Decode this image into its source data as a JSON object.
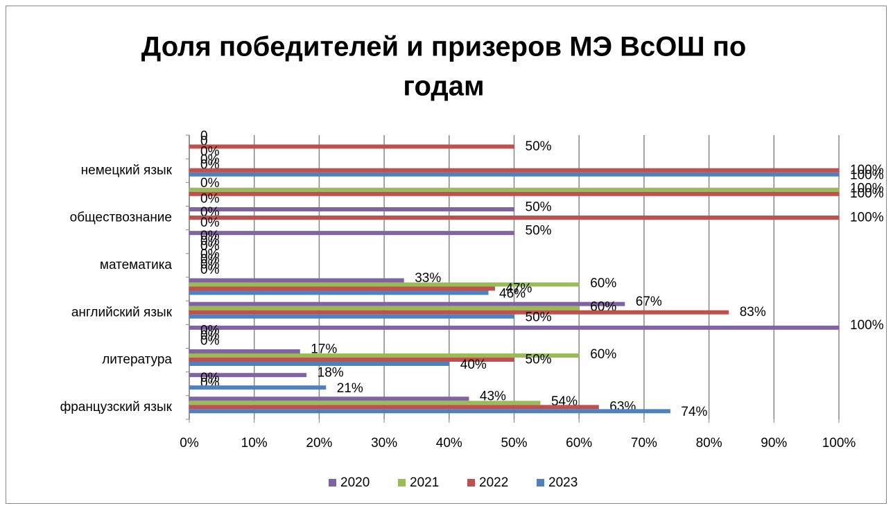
{
  "chart_data": {
    "type": "bar",
    "orientation": "horizontal",
    "title": "Доля победителей и призеров МЭ ВсОШ по годам",
    "categories": [
      "французский язык",
      null,
      "литература",
      null,
      "английский язык",
      null,
      "математика",
      null,
      "обществознание",
      null,
      "немецкий язык",
      null
    ],
    "series": [
      {
        "name": "2020",
        "color": "#8064a2",
        "values": [
          43,
          18,
          17,
          100,
          67,
          33,
          0,
          50,
          50,
          0,
          0,
          0
        ],
        "value_labels": [
          "43%",
          "18%",
          "17%",
          "100%",
          "67%",
          "33%",
          "0%",
          "50%",
          "50%",
          "0%",
          "0%",
          "0"
        ]
      },
      {
        "name": "2021",
        "color": "#9bbb59",
        "values": [
          54,
          0,
          60,
          0,
          60,
          60,
          0,
          0,
          0,
          100,
          0,
          0
        ],
        "value_labels": [
          "54%",
          "0%",
          "60%",
          "0%",
          "60%",
          "60%",
          "0%",
          "0%",
          "0%",
          "100%",
          "0%",
          "0"
        ]
      },
      {
        "name": "2022",
        "color": "#c0504d",
        "values": [
          63,
          0,
          50,
          0,
          83,
          47,
          0,
          0,
          100,
          100,
          100,
          50
        ],
        "value_labels": [
          "63%",
          "0%",
          "50%",
          "0%",
          "83%",
          "47%",
          "0%",
          "0%",
          "100%",
          "100%",
          "100%",
          "50%"
        ]
      },
      {
        "name": "2023",
        "color": "#4f81bd",
        "values": [
          74,
          21,
          40,
          0,
          50,
          46,
          0,
          0,
          0,
          0,
          100,
          0
        ],
        "value_labels": [
          "74%",
          "21%",
          "40%",
          "0%",
          "50%",
          "46%",
          "0%",
          "0%",
          "0%",
          "0%",
          "100%",
          "0%"
        ]
      }
    ],
    "xlim": [
      0,
      100
    ],
    "xticks": [
      {
        "value": 0,
        "label": "0%"
      },
      {
        "value": 10,
        "label": "10%"
      },
      {
        "value": 20,
        "label": "20%"
      },
      {
        "value": 30,
        "label": "30%"
      },
      {
        "value": 40,
        "label": "40%"
      },
      {
        "value": 50,
        "label": "50%"
      },
      {
        "value": 60,
        "label": "60%"
      },
      {
        "value": 70,
        "label": "70%"
      },
      {
        "value": 80,
        "label": "80%"
      },
      {
        "value": 90,
        "label": "90%"
      },
      {
        "value": 100,
        "label": "100%"
      }
    ],
    "grid": true,
    "legend": "bottom"
  }
}
